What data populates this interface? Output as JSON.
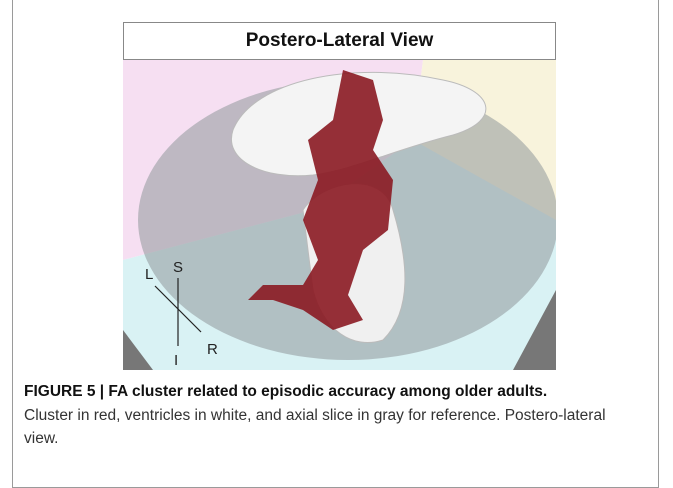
{
  "figure": {
    "title": "Postero-Lateral View",
    "orientation": {
      "left": "L",
      "superior": "S",
      "inferior": "I",
      "right": "R"
    }
  },
  "caption": {
    "label": "FIGURE 5 | FA cluster related to episodic accuracy among older adults.",
    "text": "Cluster in red, ventricles in white, and axial slice in gray for reference. Postero-lateral view."
  }
}
